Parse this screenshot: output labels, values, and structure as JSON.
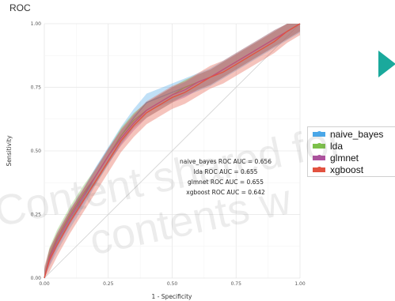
{
  "title": "ROC",
  "watermark": {
    "line1": "Content shared for",
    "line2": "contents w"
  },
  "legend": {
    "items": [
      {
        "label": "naive_bayes",
        "color": "#4aa7e8"
      },
      {
        "label": "lda",
        "color": "#7cc04a"
      },
      {
        "label": "glmnet",
        "color": "#b04fa0"
      },
      {
        "label": "xgboost",
        "color": "#e25240"
      }
    ]
  },
  "chart_data": {
    "type": "line",
    "title": "ROC",
    "xlabel": "1 - Specificity",
    "ylabel": "Sensitivity",
    "xlim": [
      0,
      1
    ],
    "ylim": [
      0,
      1
    ],
    "xticks": [
      "0.00",
      "0.25",
      "0.50",
      "0.75",
      "1.00"
    ],
    "yticks": [
      "0.00",
      "0.25",
      "0.50",
      "0.75",
      "1.00"
    ],
    "grid": true,
    "legend_position": "right",
    "reference_line": "diagonal",
    "annotations": [
      "naive_bayes ROC AUC = 0.656",
      "lda ROC AUC = 0.655",
      "glmnet ROC AUC = 0.655",
      "xgboost ROC AUC = 0.642"
    ],
    "series": [
      {
        "name": "naive_bayes",
        "color": "#4aa7e8",
        "band": 0.035,
        "x": [
          0,
          0.02,
          0.05,
          0.1,
          0.15,
          0.2,
          0.25,
          0.3,
          0.35,
          0.4,
          0.45,
          0.5,
          0.55,
          0.6,
          0.65,
          0.7,
          0.75,
          0.8,
          0.85,
          0.9,
          0.95,
          1.0
        ],
        "y": [
          0,
          0.08,
          0.14,
          0.23,
          0.31,
          0.4,
          0.48,
          0.56,
          0.63,
          0.69,
          0.71,
          0.73,
          0.75,
          0.77,
          0.79,
          0.82,
          0.85,
          0.88,
          0.91,
          0.94,
          0.97,
          1.0
        ]
      },
      {
        "name": "lda",
        "color": "#7cc04a",
        "band": 0.03,
        "x": [
          0,
          0.02,
          0.05,
          0.1,
          0.15,
          0.2,
          0.25,
          0.3,
          0.35,
          0.4,
          0.45,
          0.5,
          0.55,
          0.6,
          0.65,
          0.7,
          0.75,
          0.8,
          0.85,
          0.9,
          0.95,
          1.0
        ],
        "y": [
          0,
          0.09,
          0.16,
          0.25,
          0.33,
          0.4,
          0.48,
          0.56,
          0.62,
          0.66,
          0.69,
          0.72,
          0.75,
          0.77,
          0.79,
          0.82,
          0.85,
          0.88,
          0.91,
          0.94,
          0.97,
          1.0
        ]
      },
      {
        "name": "glmnet",
        "color": "#b04fa0",
        "band": 0.03,
        "x": [
          0,
          0.02,
          0.05,
          0.1,
          0.15,
          0.2,
          0.25,
          0.3,
          0.35,
          0.4,
          0.45,
          0.5,
          0.55,
          0.6,
          0.65,
          0.7,
          0.75,
          0.8,
          0.85,
          0.9,
          0.95,
          1.0
        ],
        "y": [
          0,
          0.08,
          0.15,
          0.24,
          0.32,
          0.4,
          0.48,
          0.55,
          0.61,
          0.66,
          0.69,
          0.72,
          0.74,
          0.77,
          0.79,
          0.82,
          0.85,
          0.88,
          0.91,
          0.94,
          0.97,
          1.0
        ]
      },
      {
        "name": "xgboost",
        "color": "#e25240",
        "band": 0.045,
        "x": [
          0,
          0.02,
          0.05,
          0.1,
          0.15,
          0.2,
          0.25,
          0.3,
          0.35,
          0.4,
          0.45,
          0.5,
          0.55,
          0.6,
          0.65,
          0.7,
          0.75,
          0.8,
          0.85,
          0.9,
          0.95,
          1.0
        ],
        "y": [
          0,
          0.07,
          0.13,
          0.22,
          0.3,
          0.38,
          0.46,
          0.54,
          0.6,
          0.65,
          0.68,
          0.71,
          0.73,
          0.76,
          0.79,
          0.81,
          0.84,
          0.87,
          0.9,
          0.93,
          0.97,
          1.0
        ]
      }
    ]
  }
}
